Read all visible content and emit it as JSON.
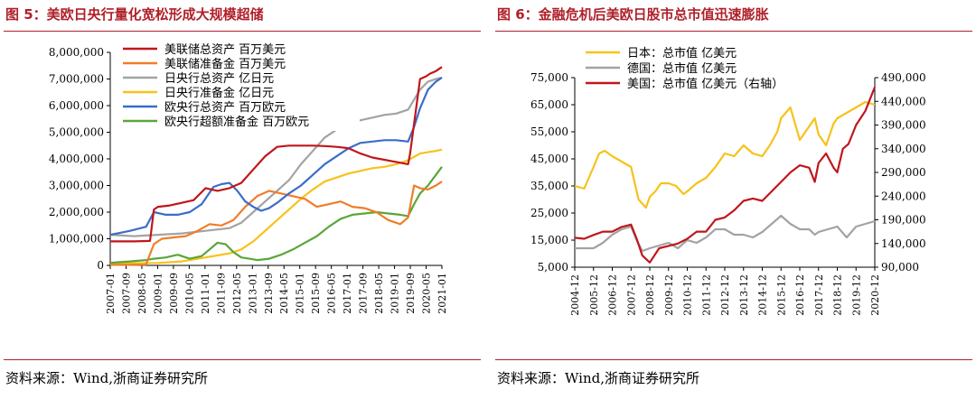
{
  "figures": [
    {
      "title": "图 5：美欧日央行量化宽松形成大规模超储",
      "source": "资料来源：Wind,浙商证券研究所"
    },
    {
      "title": "图 6：金融危机后美欧日股市总市值迅速膨胀",
      "source": "资料来源：Wind,浙商证券研究所"
    }
  ],
  "chart_data": [
    {
      "type": "line",
      "title": "",
      "x_ticks": [
        "2007-01",
        "2007-09",
        "2008-05",
        "2009-01",
        "2009-09",
        "2010-05",
        "2011-01",
        "2011-09",
        "2012-05",
        "2013-01",
        "2013-09",
        "2014-05",
        "2015-01",
        "2015-09",
        "2016-05",
        "2017-01",
        "2017-09",
        "2018-05",
        "2019-01",
        "2019-09",
        "2020-05",
        "2021-01"
      ],
      "y_ticks": [
        "0",
        "1,000,000",
        "2,000,000",
        "3,000,000",
        "4,000,000",
        "5,000,000",
        "6,000,000",
        "7,000,000",
        "8,000,000"
      ],
      "ylim": [
        0,
        8000000
      ],
      "legend_position": "top-left",
      "colors": [
        "#c0161c",
        "#f07d28",
        "#a3a3a3",
        "#f7c21a",
        "#3a6dc9",
        "#5aa639"
      ],
      "series": [
        {
          "name": "美联储总资产 百万美元",
          "x": [
            0,
            12,
            20,
            22,
            24,
            30,
            36,
            42,
            48,
            54,
            60,
            66,
            72,
            78,
            84,
            90,
            96,
            102,
            108,
            114,
            120,
            126,
            132,
            150,
            151,
            156,
            159,
            161,
            164,
            167
          ],
          "values": [
            900000,
            900000,
            920000,
            2100000,
            2200000,
            2250000,
            2350000,
            2450000,
            2900000,
            2800000,
            2900000,
            3100000,
            3600000,
            4100000,
            4450000,
            4500000,
            4500000,
            4500000,
            4480000,
            4450000,
            4400000,
            4200000,
            4050000,
            3800000,
            4200000,
            7000000,
            7100000,
            7200000,
            7300000,
            7450000
          ]
        },
        {
          "name": "美联储准备金 百万美元",
          "x": [
            0,
            10,
            18,
            22,
            26,
            32,
            38,
            44,
            50,
            56,
            62,
            68,
            74,
            80,
            86,
            92,
            98,
            104,
            110,
            116,
            122,
            128,
            134,
            140,
            146,
            150,
            153,
            156,
            160,
            164,
            167
          ],
          "values": [
            20000,
            20000,
            30000,
            800000,
            1000000,
            1050000,
            1100000,
            1300000,
            1550000,
            1500000,
            1700000,
            2200000,
            2600000,
            2800000,
            2700000,
            2600000,
            2500000,
            2200000,
            2300000,
            2400000,
            2200000,
            2150000,
            2000000,
            1700000,
            1550000,
            1800000,
            3000000,
            2900000,
            2850000,
            3000000,
            3150000
          ]
        },
        {
          "name": "日央行总资产 亿日元",
          "x": [
            0,
            12,
            24,
            36,
            48,
            60,
            66,
            72,
            78,
            84,
            90,
            96,
            102,
            108,
            114,
            120,
            126,
            132,
            138,
            144,
            150,
            156,
            160,
            164,
            167
          ],
          "values": [
            1150000,
            1100000,
            1150000,
            1200000,
            1300000,
            1400000,
            1600000,
            2000000,
            2400000,
            2800000,
            3200000,
            3800000,
            4300000,
            4800000,
            5100000,
            5300000,
            5450000,
            5550000,
            5650000,
            5700000,
            5850000,
            6600000,
            6900000,
            7000000,
            7050000
          ]
        },
        {
          "name": "日央行准备金 亿日元",
          "x": [
            0,
            12,
            24,
            36,
            48,
            60,
            66,
            72,
            78,
            84,
            90,
            96,
            102,
            108,
            114,
            120,
            126,
            132,
            138,
            144,
            150,
            156,
            160,
            164,
            167
          ],
          "values": [
            80000,
            80000,
            90000,
            150000,
            300000,
            450000,
            600000,
            900000,
            1300000,
            1700000,
            2100000,
            2500000,
            2850000,
            3150000,
            3300000,
            3450000,
            3550000,
            3650000,
            3700000,
            3800000,
            3950000,
            4200000,
            4250000,
            4300000,
            4350000
          ]
        },
        {
          "name": "欧央行总资产 百万欧元",
          "x": [
            0,
            10,
            18,
            22,
            28,
            34,
            40,
            46,
            52,
            56,
            60,
            64,
            68,
            72,
            76,
            80,
            84,
            90,
            96,
            102,
            108,
            114,
            120,
            126,
            132,
            138,
            144,
            150,
            153,
            156,
            160,
            164,
            167
          ],
          "values": [
            1150000,
            1300000,
            1450000,
            2000000,
            1900000,
            1900000,
            2000000,
            2300000,
            2950000,
            3050000,
            3100000,
            2800000,
            2400000,
            2200000,
            2050000,
            2150000,
            2350000,
            2700000,
            3000000,
            3400000,
            3800000,
            4100000,
            4400000,
            4600000,
            4650000,
            4700000,
            4700000,
            4650000,
            5200000,
            5900000,
            6600000,
            6900000,
            7050000
          ]
        },
        {
          "name": "欧央行超额准备金 百万欧元",
          "x": [
            0,
            10,
            18,
            22,
            28,
            34,
            40,
            46,
            50,
            54,
            58,
            62,
            66,
            70,
            74,
            80,
            86,
            92,
            98,
            104,
            110,
            116,
            122,
            128,
            134,
            140,
            146,
            150,
            153,
            156,
            160,
            164,
            167
          ],
          "values": [
            100000,
            150000,
            200000,
            250000,
            300000,
            400000,
            250000,
            350000,
            600000,
            850000,
            800000,
            500000,
            300000,
            250000,
            200000,
            250000,
            400000,
            600000,
            850000,
            1100000,
            1450000,
            1750000,
            1900000,
            1950000,
            2000000,
            1950000,
            1900000,
            1850000,
            2300000,
            2700000,
            3000000,
            3400000,
            3700000
          ]
        }
      ]
    },
    {
      "type": "line",
      "title": "",
      "x_ticks": [
        "2004-12",
        "2005-12",
        "2006-12",
        "2007-12",
        "2008-12",
        "2009-12",
        "2010-12",
        "2011-12",
        "2012-12",
        "2013-12",
        "2014-12",
        "2015-12",
        "2016-12",
        "2017-12",
        "2018-12",
        "2019-12",
        "2020-12"
      ],
      "y_ticks_left": [
        "5,000",
        "15,000",
        "25,000",
        "35,000",
        "45,000",
        "55,000",
        "65,000",
        "75,000"
      ],
      "y_ticks_right": [
        "90,000",
        "140,000",
        "190,000",
        "240,000",
        "290,000",
        "340,000",
        "390,000",
        "440,000",
        "490,000"
      ],
      "ylim_left": [
        5000,
        75000
      ],
      "ylim_right": [
        90000,
        490000
      ],
      "legend_position": "top-left",
      "colors": [
        "#f7c21a",
        "#a3a3a3",
        "#c0161c"
      ],
      "series": [
        {
          "name": "日本：总市值 亿美元",
          "axis": "left",
          "x": [
            0,
            0.5,
            1,
            1.3,
            1.6,
            2,
            2.5,
            3,
            3.4,
            3.8,
            4,
            4.3,
            4.6,
            5,
            5.4,
            5.8,
            6,
            6.5,
            7,
            7.5,
            8,
            8.5,
            9,
            9.5,
            10,
            10.4,
            10.8,
            11,
            11.5,
            12,
            12.5,
            12.8,
            13,
            13.4,
            13.8,
            14,
            14.5,
            15,
            15.5,
            16
          ],
          "values": [
            35000,
            34000,
            42000,
            47000,
            48000,
            46000,
            44000,
            42000,
            30000,
            27000,
            31000,
            33000,
            36000,
            36000,
            35000,
            32000,
            33000,
            36000,
            38000,
            42000,
            47000,
            46000,
            50000,
            47000,
            46000,
            50000,
            55000,
            60000,
            64000,
            52000,
            57000,
            60000,
            54000,
            50000,
            58000,
            60000,
            62000,
            64000,
            66000,
            65000
          ]
        },
        {
          "name": "德国：总市值 亿美元",
          "axis": "left",
          "x": [
            0,
            1,
            1.5,
            2,
            2.5,
            3,
            3.3,
            3.6,
            4,
            4.5,
            5,
            5.5,
            6,
            6.5,
            7,
            7.5,
            8,
            8.5,
            9,
            9.5,
            10,
            10.5,
            11,
            11.5,
            12,
            12.5,
            12.8,
            13,
            13.5,
            14,
            14.5,
            15,
            15.5,
            16
          ],
          "values": [
            12000,
            12000,
            14000,
            17000,
            19000,
            20000,
            15000,
            11000,
            12000,
            13000,
            14000,
            12000,
            15000,
            14000,
            16000,
            19000,
            19000,
            17000,
            17000,
            16000,
            18000,
            21000,
            24000,
            21000,
            19000,
            19000,
            17000,
            18000,
            19000,
            20000,
            16000,
            20000,
            21000,
            22000
          ]
        },
        {
          "name": "美国：总市值 亿美元（右轴）",
          "axis": "right",
          "x": [
            0,
            0.5,
            1,
            1.5,
            2,
            2.5,
            3,
            3.3,
            3.6,
            4,
            4.5,
            5,
            5.5,
            6,
            6.5,
            7,
            7.5,
            8,
            8.5,
            9,
            9.5,
            10,
            10.5,
            11,
            11.5,
            12,
            12.5,
            12.8,
            13,
            13.4,
            13.8,
            14,
            14.3,
            14.6,
            15,
            15.5,
            16
          ],
          "values": [
            152000,
            150000,
            158000,
            165000,
            165000,
            175000,
            180000,
            150000,
            115000,
            100000,
            130000,
            135000,
            140000,
            150000,
            165000,
            165000,
            190000,
            195000,
            210000,
            230000,
            235000,
            230000,
            250000,
            270000,
            290000,
            305000,
            300000,
            270000,
            310000,
            330000,
            300000,
            290000,
            340000,
            350000,
            390000,
            420000,
            470000
          ]
        }
      ]
    }
  ]
}
